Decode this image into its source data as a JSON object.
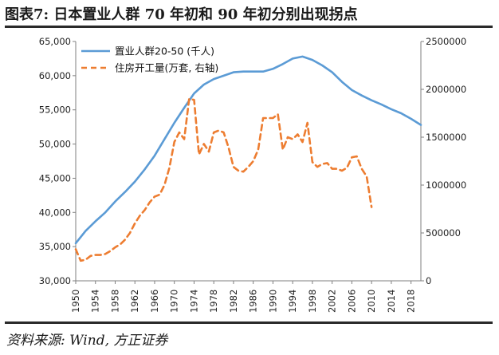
{
  "figure": {
    "title": "图表7:  日本置业人群 70 年初和 90 年初分别出现拐点",
    "source": "资料来源: Wind, 方正证券"
  },
  "chart_data": {
    "type": "line",
    "x_tick_labels": [
      "1950",
      "1954",
      "1958",
      "1962",
      "1966",
      "1970",
      "1974",
      "1978",
      "1982",
      "1986",
      "1990",
      "1994",
      "1998",
      "2002",
      "2006",
      "2010",
      "2014",
      "2018"
    ],
    "y_left": {
      "min": 30000,
      "max": 65000,
      "ticks": [
        30000,
        35000,
        40000,
        45000,
        50000,
        55000,
        60000,
        65000
      ],
      "tick_labels": [
        "30,000",
        "35,000",
        "40,000",
        "45,000",
        "50,000",
        "55,000",
        "60,000",
        "65,000"
      ]
    },
    "y_right": {
      "min": 0,
      "max": 2500000,
      "ticks": [
        0,
        500000,
        1000000,
        1500000,
        2000000,
        2500000
      ],
      "tick_labels": [
        "0",
        "500000",
        "1000000",
        "1500000",
        "2000000",
        "2500000"
      ]
    },
    "x_range": [
      1950,
      2020
    ],
    "grid": false,
    "legend_position": "top-left",
    "series": [
      {
        "name": "置业人群20-50 (千人)",
        "axis": "left",
        "style": "solid",
        "color": "#5b9bd5",
        "x": [
          1950,
          1952,
          1954,
          1956,
          1958,
          1960,
          1962,
          1964,
          1966,
          1968,
          1970,
          1972,
          1974,
          1976,
          1978,
          1980,
          1982,
          1984,
          1986,
          1988,
          1990,
          1992,
          1994,
          1996,
          1998,
          2000,
          2002,
          2004,
          2006,
          2008,
          2010,
          2012,
          2014,
          2016,
          2018,
          2020
        ],
        "y": [
          35500,
          37300,
          38700,
          40000,
          41600,
          43000,
          44500,
          46300,
          48300,
          50700,
          53100,
          55300,
          57400,
          58700,
          59500,
          60000,
          60500,
          60600,
          60600,
          60600,
          61000,
          61700,
          62500,
          62800,
          62300,
          61500,
          60500,
          59100,
          57900,
          57100,
          56400,
          55800,
          55100,
          54500,
          53700,
          52800
        ]
      },
      {
        "name": "住房开工量(万套, 右轴)",
        "axis": "right",
        "style": "dashed",
        "color": "#ed7d31",
        "x": [
          1950,
          1951,
          1952,
          1953,
          1954,
          1955,
          1956,
          1957,
          1958,
          1959,
          1960,
          1961,
          1962,
          1963,
          1964,
          1965,
          1966,
          1967,
          1968,
          1969,
          1970,
          1971,
          1972,
          1973,
          1974,
          1975,
          1976,
          1977,
          1978,
          1979,
          1980,
          1981,
          1982,
          1983,
          1984,
          1985,
          1986,
          1987,
          1988,
          1989,
          1990,
          1991,
          1992,
          1993,
          1994,
          1995,
          1996,
          1997,
          1998,
          1999,
          2000,
          2001,
          2002,
          2003,
          2004,
          2005,
          2006,
          2007,
          2008,
          2009,
          2010
        ],
        "y": [
          330000,
          210000,
          220000,
          260000,
          270000,
          270000,
          280000,
          310000,
          350000,
          380000,
          430000,
          500000,
          600000,
          680000,
          740000,
          820000,
          880000,
          900000,
          1000000,
          1180000,
          1450000,
          1550000,
          1480000,
          1900000,
          1890000,
          1320000,
          1430000,
          1350000,
          1550000,
          1570000,
          1550000,
          1390000,
          1190000,
          1150000,
          1140000,
          1190000,
          1250000,
          1370000,
          1700000,
          1700000,
          1700000,
          1740000,
          1370000,
          1500000,
          1480000,
          1530000,
          1450000,
          1650000,
          1240000,
          1190000,
          1220000,
          1230000,
          1170000,
          1170000,
          1150000,
          1180000,
          1290000,
          1300000,
          1170000,
          1090000,
          770000
        ]
      }
    ]
  }
}
